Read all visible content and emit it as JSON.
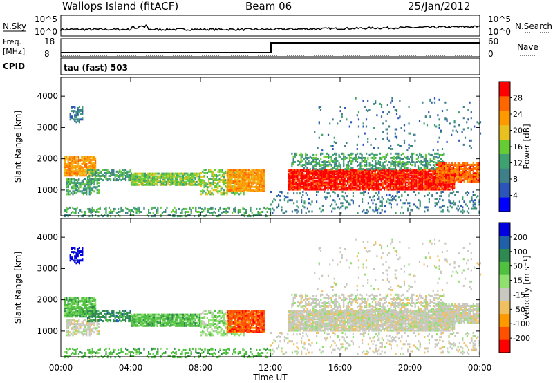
{
  "header": {
    "station": "Wallops Island (fitACF)",
    "beam": "Beam 06",
    "date": "25/Jan/2012"
  },
  "summary_panel": {
    "nsky_label": "N.Sky",
    "nsearch_label": "N.Search",
    "nsky_ticks": [
      "10^5",
      "10^0"
    ],
    "nsearch_ticks": [
      "10^5",
      "10^0"
    ],
    "freq_label_top": "Freq.",
    "freq_label_unit": "[MHz]",
    "freq_ticks": [
      "18",
      "8"
    ],
    "nave_label": "Nave",
    "nave_ticks": [
      "60",
      "0"
    ],
    "cpid_label": "CPID",
    "cpid_value": "tau (fast) 503"
  },
  "colors": {
    "power_scale": [
      "#0000ff",
      "#2b55b8",
      "#3e7f8a",
      "#3fa070",
      "#66cc33",
      "#e8c020",
      "#ff9900",
      "#ff6600",
      "#ff0000"
    ],
    "velocity_scale": [
      "#0000e0",
      "#2060a8",
      "#2e8a50",
      "#50c040",
      "#90e070",
      "#c8c8c0",
      "#f0c060",
      "#ff9900",
      "#ff5000",
      "#ff0000"
    ]
  },
  "chart_data": [
    {
      "type": "heatmap",
      "name": "power",
      "title": "",
      "xlabel": "Time UT",
      "ylabel": "Slant Range [km]",
      "x_ticks": [
        "00:00",
        "04:00",
        "08:00",
        "12:00",
        "16:00",
        "20:00",
        "00:00"
      ],
      "y_ticks": [
        "1000",
        "2000",
        "3000",
        "4000"
      ],
      "xlim_hours": [
        0,
        24
      ],
      "ylim_km": [
        180,
        4600
      ],
      "colorbar": {
        "label": "Power [dB]",
        "ticks": [
          "4",
          "8",
          "12",
          "16",
          "20",
          "24",
          "28"
        ],
        "range": [
          0,
          30
        ]
      }
    },
    {
      "type": "heatmap",
      "name": "velocity",
      "title": "",
      "xlabel": "Time UT",
      "ylabel": "Slant Range [km]",
      "x_ticks": [
        "00:00",
        "04:00",
        "08:00",
        "12:00",
        "16:00",
        "20:00",
        "00:00"
      ],
      "y_ticks": [
        "1000",
        "2000",
        "3000",
        "4000"
      ],
      "xlim_hours": [
        0,
        24
      ],
      "ylim_km": [
        180,
        4600
      ],
      "colorbar": {
        "label": "Velocity [m s⁻¹]",
        "ticks": [
          "200",
          "100",
          "50",
          "15",
          "-15",
          "-50",
          "-100",
          "-200"
        ],
        "range": [
          -250,
          250
        ]
      }
    }
  ],
  "x_axis": {
    "label": "Time UT",
    "ticks": [
      "00:00",
      "04:00",
      "08:00",
      "12:00",
      "16:00",
      "20:00",
      "00:00"
    ]
  }
}
